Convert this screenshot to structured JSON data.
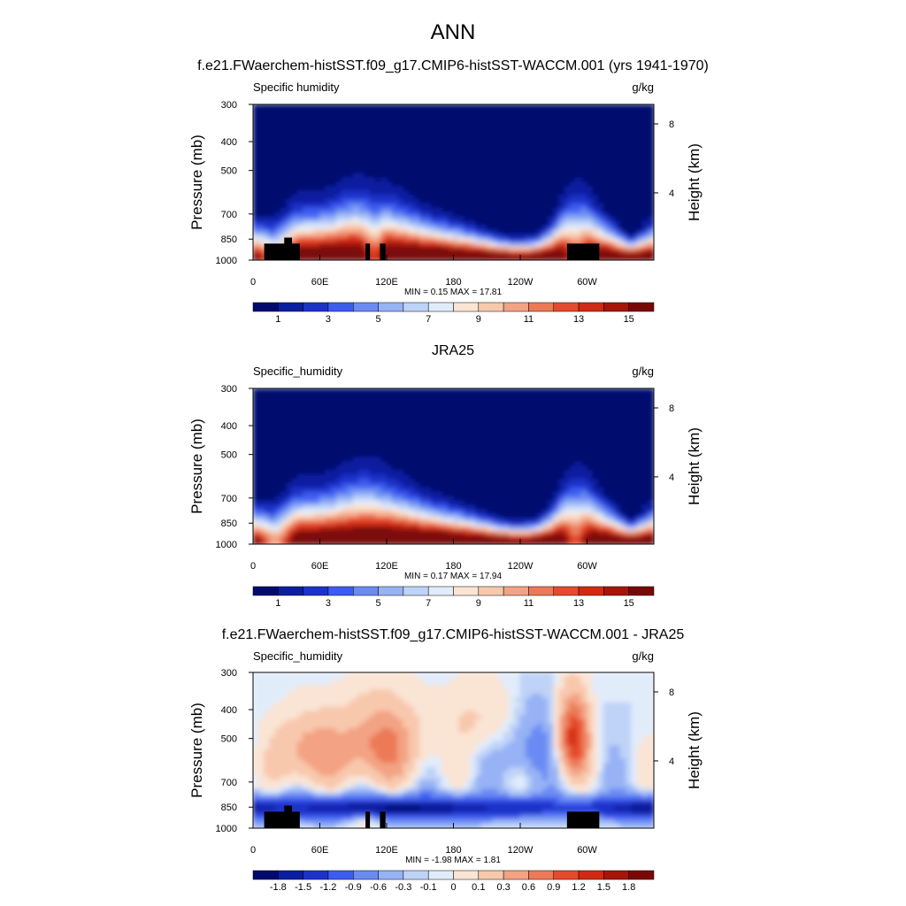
{
  "figure": {
    "title": "ANN",
    "colors": {
      "absolute": [
        "#030a6e",
        "#0a1fa0",
        "#1c33c9",
        "#3c5cf0",
        "#6b8bf3",
        "#97b2f5",
        "#bfd3f8",
        "#e1ecfb",
        "#fae4d4",
        "#f8c8ad",
        "#f3a383",
        "#ec7a57",
        "#e54a2c",
        "#d12a12",
        "#a51608",
        "#7a0707"
      ],
      "difference": [
        "#030a6e",
        "#0a1fa0",
        "#1c33c9",
        "#3c5cf0",
        "#6b8bf3",
        "#97b2f5",
        "#bfd3f8",
        "#e1ecfb",
        "#fae4d4",
        "#f8c8ad",
        "#f3a383",
        "#ec7a57",
        "#e54a2c",
        "#d12a12",
        "#a51608",
        "#7a0707"
      ]
    }
  },
  "chart_data": [
    {
      "type": "heatmap",
      "title": "f.e21.FWaerchem-histSST.f09_g17.CMIP6-histSST-WACCM.001 (yrs 1941-1970)",
      "variable_label": "Specific humidity",
      "units": "g/kg",
      "ylabel": "Pressure (mb)",
      "ylabel_right": "Height (km)",
      "x_ticks": [
        "0",
        "60E",
        "120E",
        "180",
        "120W",
        "60W"
      ],
      "y_ticks": [
        "300",
        "400",
        "500",
        "700",
        "850",
        "1000"
      ],
      "y_ticks_right": [
        "8",
        "4"
      ],
      "min_label": "MIN =   0.15  MAX =  17.81",
      "min": 0.15,
      "max": 17.81,
      "colorbar_labels": [
        "1",
        "3",
        "5",
        "7",
        "9",
        "11",
        "13",
        "15"
      ],
      "masked_terrain": true
    },
    {
      "type": "heatmap",
      "title": "JRA25",
      "variable_label": "Specific_humidity",
      "units": "g/kg",
      "ylabel": "Pressure (mb)",
      "ylabel_right": "Height (km)",
      "x_ticks": [
        "0",
        "60E",
        "120E",
        "180",
        "120W",
        "60W"
      ],
      "y_ticks": [
        "300",
        "400",
        "500",
        "700",
        "850",
        "1000"
      ],
      "y_ticks_right": [
        "8",
        "4"
      ],
      "min_label": "MIN =   0.17  MAX =  17.94",
      "min": 0.17,
      "max": 17.94,
      "colorbar_labels": [
        "1",
        "3",
        "5",
        "7",
        "9",
        "11",
        "13",
        "15"
      ],
      "masked_terrain": false
    },
    {
      "type": "heatmap",
      "title": "f.e21.FWaerchem-histSST.f09_g17.CMIP6-histSST-WACCM.001 - JRA25",
      "variable_label": "Specific_humidity",
      "units": "g/kg",
      "ylabel": "Pressure (mb)",
      "ylabel_right": "Height (km)",
      "x_ticks": [
        "0",
        "60E",
        "120E",
        "180",
        "120W",
        "60W"
      ],
      "y_ticks": [
        "300",
        "400",
        "500",
        "700",
        "850",
        "1000"
      ],
      "y_ticks_right": [
        "8",
        "4"
      ],
      "min_label": "MIN =  -1.98  MAX =    1.81",
      "min": -1.98,
      "max": 1.81,
      "colorbar_labels": [
        "-1.8",
        "-1.5",
        "-1.2",
        "-0.9",
        "-0.6",
        "-0.3",
        "-0.1",
        "0",
        "0.1",
        "0.3",
        "0.6",
        "0.9",
        "1.2",
        "1.5",
        "1.8"
      ],
      "masked_terrain": true
    }
  ]
}
